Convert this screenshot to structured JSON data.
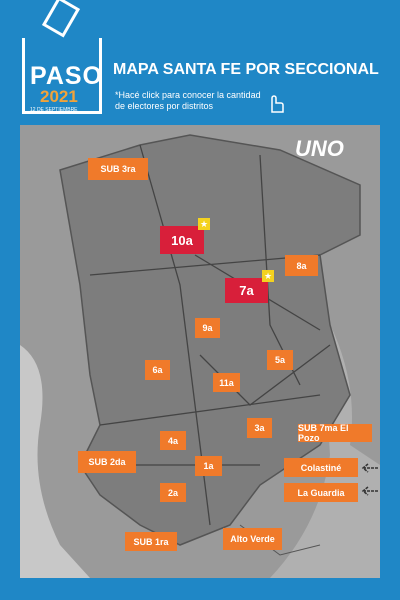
{
  "header": {
    "logo": {
      "title": "PASO",
      "year": "2021",
      "date": "12 DE SEPTIEMBRE"
    },
    "title": "MAPA SANTA FE POR SECCIONAL",
    "subtitle": "*Hacé click para conocer la cantidad de electores por distritos"
  },
  "map": {
    "brand": "UNO",
    "districts": [
      "SUB 3ra",
      "10a",
      "8a",
      "7a",
      "9a",
      "6a",
      "5a",
      "11a",
      "3a",
      "4a",
      "SUB 7ma  El Pozo",
      "SUB 2da",
      "1a",
      "Colastiné",
      "2a",
      "La Guardia",
      "SUB 1ra",
      "Alto Verde"
    ]
  }
}
